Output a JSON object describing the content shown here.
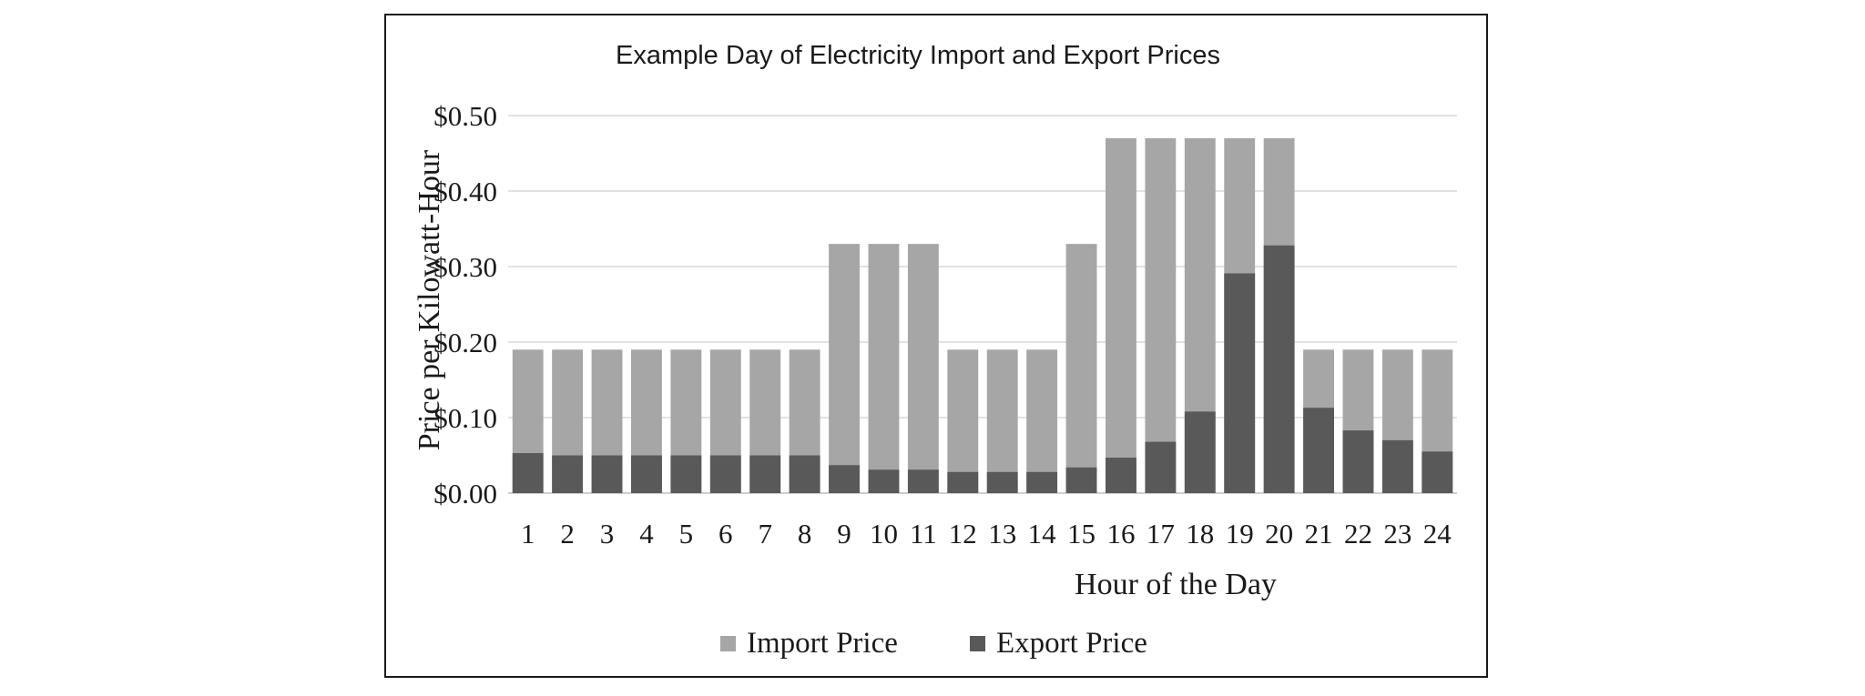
{
  "chart_data": {
    "type": "bar",
    "title": "Example Day of Electricity  Import and Export Prices",
    "xlabel": "Hour of the Day",
    "ylabel": "Price per Kilowatt-Hour",
    "ylim": [
      0,
      0.5
    ],
    "yticks": [
      "$0.00",
      "$0.10",
      "$0.20",
      "$0.30",
      "$0.40",
      "$0.50"
    ],
    "grid": true,
    "legend_position": "bottom",
    "categories": [
      "1",
      "2",
      "3",
      "4",
      "5",
      "6",
      "7",
      "8",
      "9",
      "10",
      "11",
      "12",
      "13",
      "14",
      "15",
      "16",
      "17",
      "18",
      "19",
      "20",
      "21",
      "22",
      "23",
      "24"
    ],
    "series": [
      {
        "name": "Import Price",
        "color": "#a6a6a6",
        "values": [
          0.19,
          0.19,
          0.19,
          0.19,
          0.19,
          0.19,
          0.19,
          0.19,
          0.33,
          0.33,
          0.33,
          0.19,
          0.19,
          0.19,
          0.33,
          0.47,
          0.47,
          0.47,
          0.47,
          0.47,
          0.19,
          0.19,
          0.19,
          0.19
        ]
      },
      {
        "name": "Export Price",
        "color": "#595959",
        "values": [
          0.053,
          0.05,
          0.05,
          0.05,
          0.05,
          0.05,
          0.05,
          0.05,
          0.037,
          0.031,
          0.031,
          0.028,
          0.028,
          0.028,
          0.034,
          0.047,
          0.068,
          0.108,
          0.291,
          0.328,
          0.113,
          0.083,
          0.07,
          0.055
        ]
      }
    ]
  }
}
